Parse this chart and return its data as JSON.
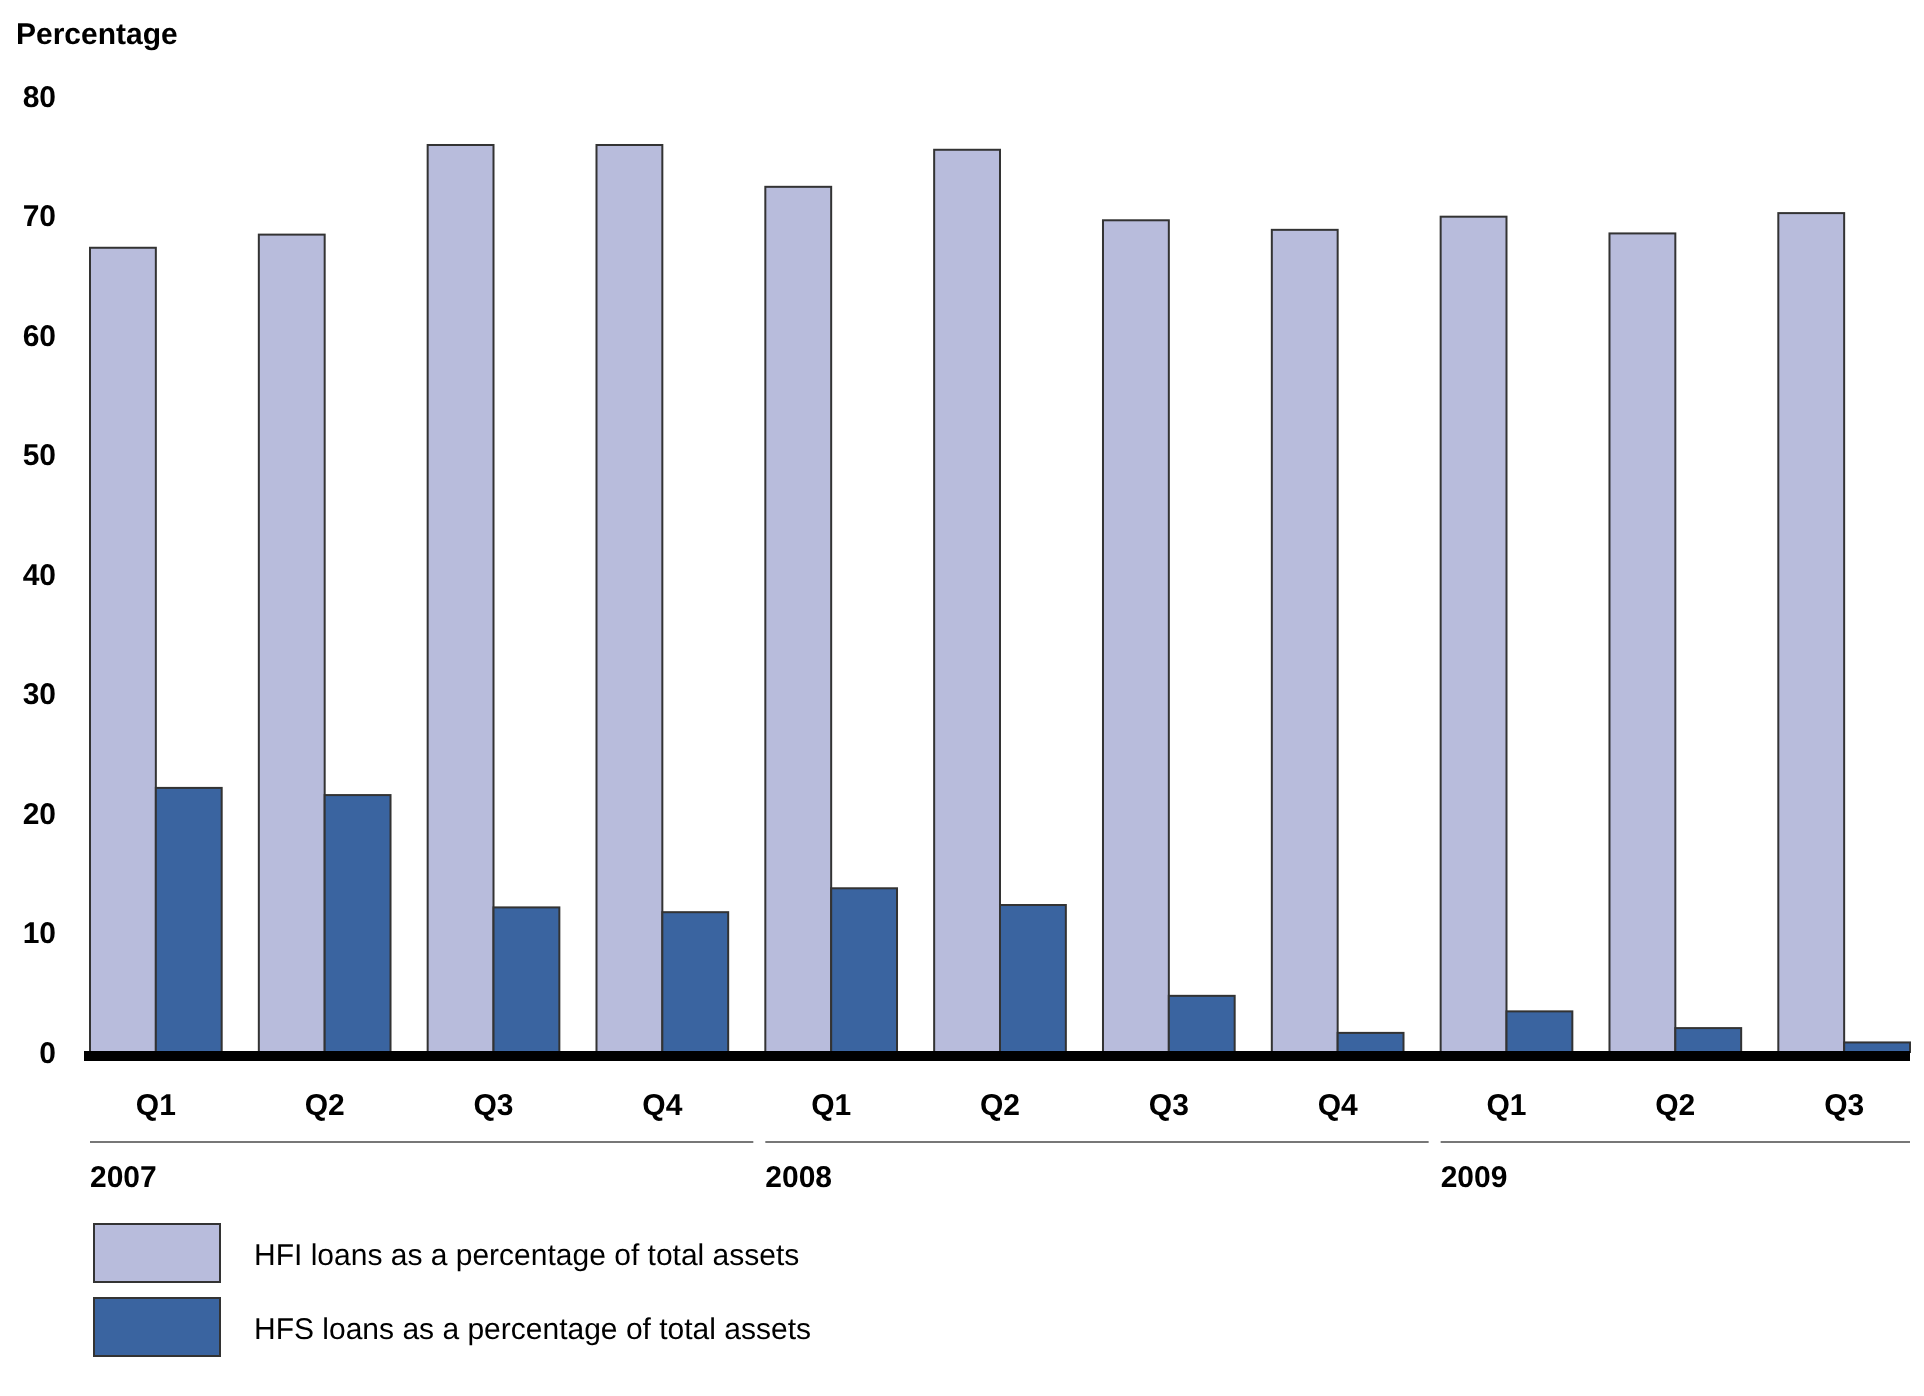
{
  "chart_data": {
    "type": "bar",
    "ylabel": "Percentage",
    "categories": [
      "Q1",
      "Q2",
      "Q3",
      "Q4",
      "Q1",
      "Q2",
      "Q3",
      "Q4",
      "Q1",
      "Q2",
      "Q3"
    ],
    "series": [
      {
        "name": "HFI loans as a percentage of total assets",
        "color": "#b8bcdc",
        "values": [
          67.3,
          68.4,
          75.9,
          75.9,
          72.4,
          75.5,
          69.6,
          68.8,
          69.9,
          68.5,
          70.2
        ]
      },
      {
        "name": "HFS loans as a percentage of total assets",
        "color": "#3a64a0",
        "values": [
          22.1,
          21.5,
          12.1,
          11.7,
          13.7,
          12.3,
          4.7,
          1.6,
          3.4,
          2.0,
          0.8
        ]
      }
    ],
    "ylim": [
      0,
      80
    ],
    "yticks": [
      0,
      10,
      20,
      30,
      40,
      50,
      60,
      70,
      80
    ],
    "annotations": [
      "2007",
      "2008",
      "2009"
    ],
    "grid": false,
    "legend": "bottom"
  }
}
